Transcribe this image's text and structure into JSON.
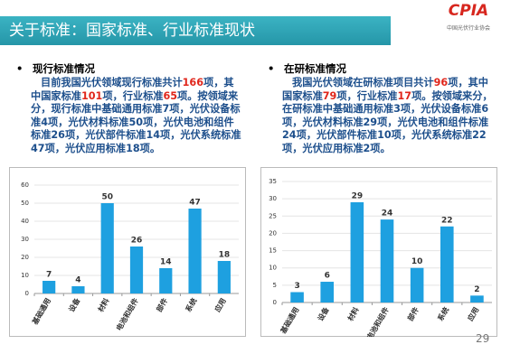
{
  "header": {
    "title": "关于标准：国家标准、行业标准现状",
    "logo": "CPIA",
    "logo_subtitle": "中国光伏行业协会"
  },
  "sections": [
    {
      "heading": "现行标准情况",
      "body": [
        "目前我国光伏领域现行标准共计",
        {
          "text": "166",
          "color": "#e0261b"
        },
        "项，其中国家标准",
        {
          "text": "101",
          "color": "#e0261b"
        },
        "项，行业标准",
        {
          "text": "65",
          "color": "#e0261b"
        },
        "项。按领域来分，现行标准中基础通用标准7项，光伏设备标准4项，光伏材料标准50项，光伏电池和组件标准26项，光伏部件标准14项，光伏系统标准47项，光伏应用标准18项。"
      ]
    },
    {
      "heading": "在研标准情况",
      "body": [
        "我国光伏领域在研标准项目共计",
        {
          "text": "96",
          "color": "#e0261b"
        },
        "项，其中国家标准",
        {
          "text": "79",
          "color": "#e0261b"
        },
        "项，行业标准",
        {
          "text": "17",
          "color": "#e0261b"
        },
        "项。按领域来分，在研标准中基础通用标准3项，光伏设备标准6项，光伏材料标准29项，光伏电池和组件标准24项，光伏部件标准10项，光伏系统标准22项，光伏应用标准2项。"
      ]
    }
  ],
  "chart_data": [
    {
      "type": "bar",
      "categories": [
        "基础通用",
        "设备",
        "材料",
        "电池和组件",
        "部件",
        "系统",
        "应用"
      ],
      "values": [
        7,
        4,
        50,
        26,
        14,
        47,
        18
      ],
      "color": "#1ea0e0",
      "ylim": [
        0,
        60
      ],
      "yticks": [
        0,
        10,
        20,
        30,
        40,
        50,
        60
      ],
      "grid": true
    },
    {
      "type": "bar",
      "categories": [
        "基础通用",
        "设备",
        "材料",
        "电池和组件",
        "部件",
        "系统",
        "应用"
      ],
      "values": [
        3,
        6,
        29,
        24,
        10,
        22,
        2
      ],
      "color": "#1ea0e0",
      "ylim": [
        0,
        35
      ],
      "yticks": [
        0,
        5,
        10,
        15,
        20,
        25,
        30,
        35
      ],
      "grid": true
    }
  ],
  "page_number": "29"
}
